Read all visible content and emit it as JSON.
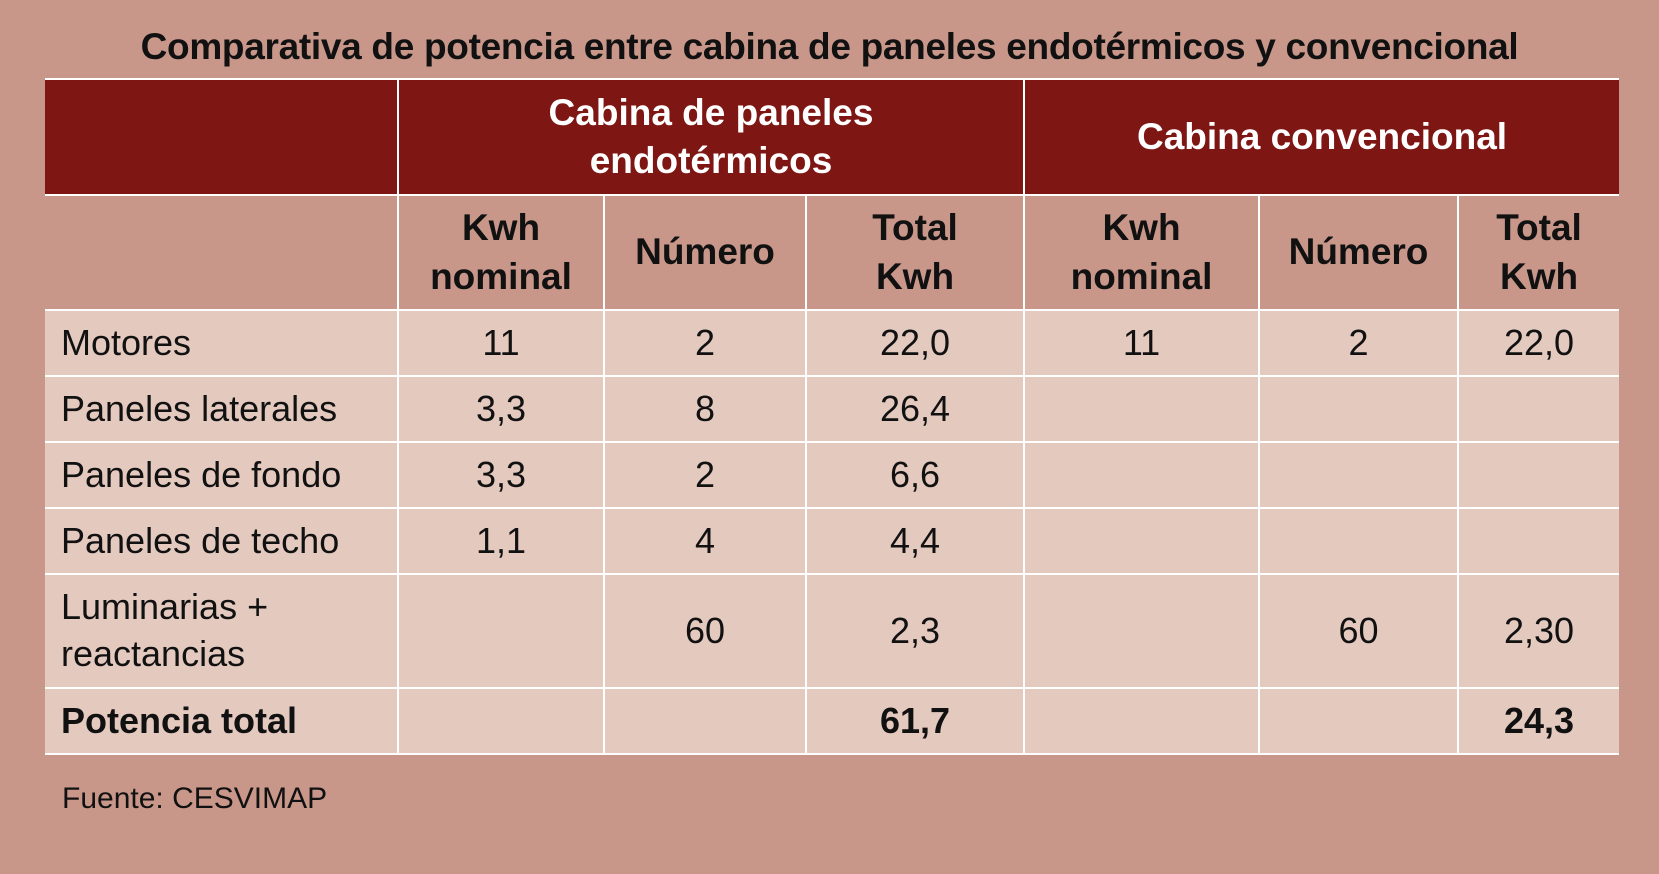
{
  "title": "Comparativa de potencia entre cabina de paneles endotérmicos y convencional",
  "table": {
    "groups": [
      "Cabina de paneles endotérmicos",
      "Cabina convencional"
    ],
    "columns": [
      "Kwh nominal",
      "Número",
      "Total Kwh",
      "Kwh nominal",
      "Número",
      "Total Kwh"
    ],
    "rows": [
      [
        "Motores",
        "11",
        "2",
        "22,0",
        "11",
        "2",
        "22,0"
      ],
      [
        "Paneles laterales",
        "3,3",
        "8",
        "26,4",
        null,
        null,
        null
      ],
      [
        "Paneles de fondo",
        "3,3",
        "2",
        "6,6",
        null,
        null,
        null
      ],
      [
        "Paneles de techo",
        "1,1",
        "4",
        "4,4",
        null,
        null,
        null
      ],
      [
        "Luminarias + reactancias",
        null,
        "60",
        "2,3",
        null,
        "60",
        "2,30"
      ],
      [
        "Potencia total",
        null,
        null,
        "61,7",
        null,
        null,
        "24,3"
      ]
    ]
  },
  "source": "Fuente: CESVIMAP"
}
